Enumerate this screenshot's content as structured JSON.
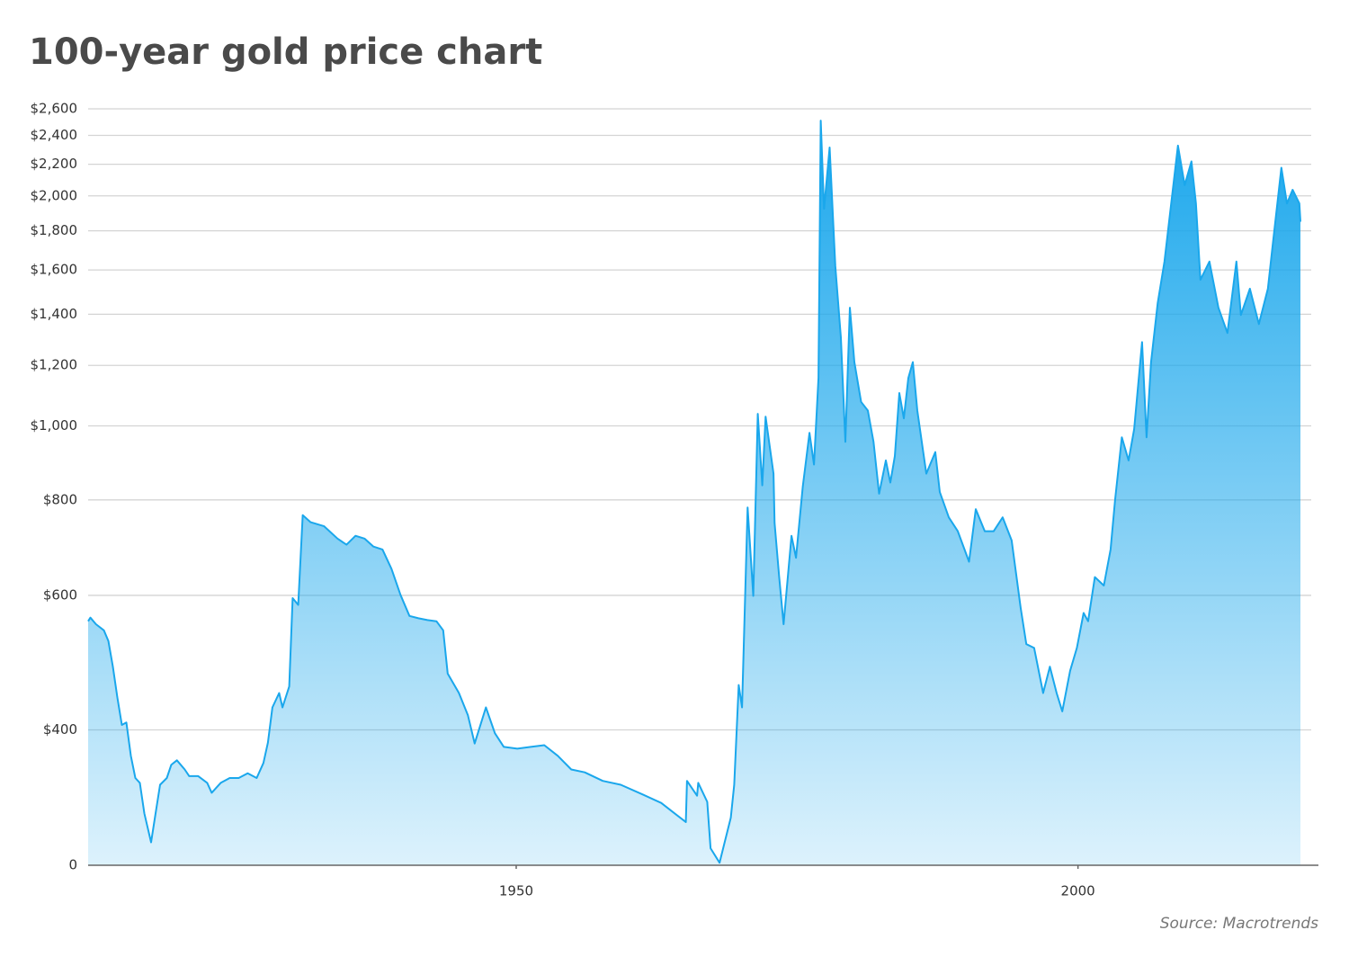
{
  "chart_data": {
    "type": "area",
    "title": "100-year gold price chart",
    "source": "Source: Macrotrends",
    "color": "#1aa7ec",
    "log_scale": true,
    "grid": true,
    "xlim": [
      1911.9,
      2021.4
    ],
    "xticks": [
      1950,
      2000
    ],
    "ylim": [
      266,
      2600
    ],
    "yticks": [
      0,
      {
        "value": 400,
        "label": "$400"
      },
      {
        "value": 600,
        "label": "$600"
      },
      {
        "value": 800,
        "label": "$800"
      },
      {
        "value": 1000,
        "label": "$1,000"
      },
      {
        "value": 1200,
        "label": "$1,200"
      },
      {
        "value": 1400,
        "label": "$1,400"
      },
      {
        "value": 1600,
        "label": "$1,600"
      },
      {
        "value": 1800,
        "label": "$1,800"
      },
      {
        "value": 2000,
        "label": "$2,000"
      },
      {
        "value": 2200,
        "label": "$2,200"
      },
      {
        "value": 2400,
        "label": "$2,400"
      },
      {
        "value": 2600,
        "label": "$2,600"
      }
    ],
    "x": [
      1911.9,
      1912.1,
      1912.6,
      1913.3,
      1913.7,
      1914.1,
      1914.5,
      1914.9,
      1915.3,
      1915.7,
      1916.1,
      1916.5,
      1916.9,
      1917.5,
      1917.9,
      1918.3,
      1918.9,
      1919.3,
      1919.8,
      1920.5,
      1920.9,
      1921.7,
      1922.5,
      1922.9,
      1923.7,
      1924.5,
      1925.3,
      1926.1,
      1926.9,
      1927.5,
      1927.9,
      1928.3,
      1928.9,
      1929.2,
      1929.8,
      1930.1,
      1930.6,
      1931.0,
      1931.7,
      1932.9,
      1934.1,
      1934.9,
      1935.7,
      1936.5,
      1937.3,
      1938.1,
      1938.9,
      1939.7,
      1940.5,
      1941.3,
      1942.1,
      1942.9,
      1943.5,
      1943.9,
      1944.9,
      1945.7,
      1946.3,
      1947.3,
      1948.1,
      1948.9,
      1950.1,
      1951.3,
      1952.5,
      1953.7,
      1954.9,
      1956.1,
      1957.7,
      1959.3,
      1961.3,
      1962.9,
      1964.1,
      1965.1,
      1965.2,
      1966.1,
      1966.2,
      1967.0,
      1967.3,
      1968.1,
      1968.5,
      1969.1,
      1969.4,
      1969.8,
      1970.1,
      1970.6,
      1971.1,
      1971.5,
      1971.9,
      1972.2,
      1972.9,
      1973.0,
      1973.4,
      1973.8,
      1974.5,
      1974.9,
      1975.5,
      1976.1,
      1976.5,
      1976.9,
      1977.1,
      1977.4,
      1977.9,
      1978.4,
      1978.9,
      1979.3,
      1979.7,
      1980.1,
      1980.7,
      1981.3,
      1981.8,
      1982.3,
      1982.9,
      1983.3,
      1983.7,
      1984.1,
      1984.5,
      1984.9,
      1985.3,
      1985.7,
      1986.5,
      1987.3,
      1987.7,
      1988.5,
      1989.3,
      1990.3,
      1990.9,
      1991.7,
      1992.5,
      1993.3,
      1994.1,
      1994.9,
      1995.4,
      1996.1,
      1996.9,
      1997.5,
      1998.1,
      1998.6,
      1999.3,
      1999.9,
      2000.5,
      2000.9,
      2001.5,
      2002.3,
      2002.9,
      2003.3,
      2003.9,
      2004.5,
      2005.0,
      2005.7,
      2006.1,
      2006.5,
      2007.1,
      2007.7,
      2008.3,
      2008.9,
      2009.5,
      2010.1,
      2010.5,
      2010.9,
      2011.7,
      2012.5,
      2013.3,
      2014.1,
      2014.5,
      2015.3,
      2016.1,
      2016.9,
      2017.3,
      2018.1,
      2018.6,
      2019.1,
      2019.7,
      2019.8
    ],
    "values": [
      555,
      561,
      550,
      540,
      523,
      484,
      441,
      406,
      409,
      370,
      346,
      341,
      311,
      285,
      311,
      339,
      346,
      360,
      365,
      355,
      348,
      348,
      341,
      331,
      341,
      346,
      346,
      351,
      346,
      362,
      385,
      428,
      447,
      428,
      456,
      595,
      583,
      764,
      748,
      739,
      712,
      699,
      718,
      712,
      695,
      689,
      650,
      601,
      564,
      560,
      557,
      555,
      540,
      474,
      447,
      418,
      384,
      428,
      396,
      380,
      378,
      380,
      382,
      370,
      355,
      352,
      343,
      339,
      329,
      321,
      311,
      303,
      343,
      328,
      341,
      322,
      280,
      268,
      283,
      307,
      339,
      458,
      428,
      782,
      599,
      1037,
      836,
      1028,
      866,
      746,
      636,
      550,
      718,
      672,
      832,
      979,
      890,
      1155,
      2509,
      1924,
      2314,
      1619,
      1305,
      953,
      1428,
      1212,
      1075,
      1047,
      953,
      815,
      901,
      843,
      913,
      1104,
      1023,
      1155,
      1212,
      1047,
      866,
      924,
      819,
      759,
      728,
      664,
      778,
      728,
      728,
      759,
      708,
      578,
      518,
      512,
      447,
      484,
      447,
      423,
      478,
      512,
      569,
      555,
      634,
      618,
      689,
      800,
      966,
      901,
      990,
      1287,
      966,
      1212,
      1448,
      1641,
      1955,
      2327,
      2066,
      2219,
      1955,
      1553,
      1641,
      1428,
      1323,
      1641,
      1397,
      1512,
      1359,
      1512,
      1710,
      2177,
      1955,
      2037,
      1955,
      1850
    ]
  }
}
